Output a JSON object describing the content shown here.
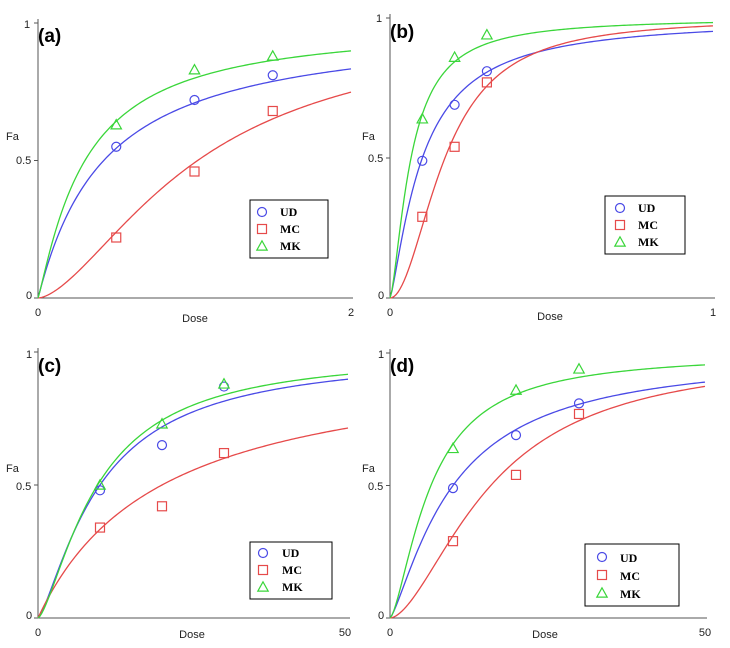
{
  "colors": {
    "UD": "#4a4ae6",
    "MC": "#e64a4a",
    "MK": "#3ad63a",
    "axis": "#555555"
  },
  "chart_data": [
    {
      "type": "scatter+line",
      "panel_label": "(a)",
      "xlabel": "Dose",
      "ylabel": "Fa",
      "xlim": [
        0,
        2
      ],
      "ylim": [
        0,
        1
      ],
      "x_tick_labels": [
        "0",
        "2"
      ],
      "y_tick_labels": [
        "0",
        "0.5",
        "1"
      ],
      "legend_position": "bottom-right",
      "series": [
        {
          "name": "UD",
          "marker": "circle",
          "points": [
            [
              0.5,
              0.55
            ],
            [
              1.0,
              0.72
            ],
            [
              1.5,
              0.81
            ]
          ],
          "fit": {
            "dm": 0.42,
            "m": 1.03
          }
        },
        {
          "name": "MC",
          "marker": "square",
          "points": [
            [
              0.5,
              0.22
            ],
            [
              1.0,
              0.46
            ],
            [
              1.5,
              0.68
            ]
          ],
          "fit": {
            "dm": 1.02,
            "m": 1.62
          }
        },
        {
          "name": "MK",
          "marker": "triangle",
          "points": [
            [
              0.5,
              0.63
            ],
            [
              1.0,
              0.83
            ],
            [
              1.5,
              0.88
            ]
          ],
          "fit": {
            "dm": 0.3,
            "m": 1.15
          }
        }
      ]
    },
    {
      "type": "scatter+line",
      "panel_label": "(b)",
      "xlabel": "Dose",
      "ylabel": "Fa",
      "xlim": [
        0,
        1
      ],
      "ylim": [
        0,
        1
      ],
      "x_tick_labels": [
        "0",
        "1"
      ],
      "y_tick_labels": [
        "0",
        "0.5",
        "1"
      ],
      "legend_position": "bottom-right",
      "series": [
        {
          "name": "UD",
          "marker": "circle",
          "points": [
            [
              0.1,
              0.49
            ],
            [
              0.2,
              0.69
            ],
            [
              0.3,
              0.81
            ]
          ],
          "fit": {
            "dm": 0.1,
            "m": 1.3
          }
        },
        {
          "name": "MC",
          "marker": "square",
          "points": [
            [
              0.1,
              0.29
            ],
            [
              0.2,
              0.54
            ],
            [
              0.3,
              0.77
            ]
          ],
          "fit": {
            "dm": 0.17,
            "m": 2.0
          }
        },
        {
          "name": "MK",
          "marker": "triangle",
          "points": [
            [
              0.1,
              0.64
            ],
            [
              0.2,
              0.86
            ],
            [
              0.3,
              0.94
            ]
          ],
          "fit": {
            "dm": 0.065,
            "m": 1.5
          }
        }
      ]
    },
    {
      "type": "scatter+line",
      "panel_label": "(c)",
      "xlabel": "Dose",
      "ylabel": "Fa",
      "xlim": [
        0,
        50
      ],
      "ylim": [
        0,
        1
      ],
      "x_tick_labels": [
        "0",
        "50"
      ],
      "y_tick_labels": [
        "0",
        "0.5",
        "1"
      ],
      "legend_position": "bottom-right",
      "series": [
        {
          "name": "UD",
          "marker": "circle",
          "points": [
            [
              10,
              0.48
            ],
            [
              20,
              0.65
            ],
            [
              30,
              0.87
            ]
          ],
          "fit": {
            "dm": 10.0,
            "m": 1.35
          }
        },
        {
          "name": "MC",
          "marker": "square",
          "points": [
            [
              10,
              0.34
            ],
            [
              20,
              0.42
            ],
            [
              30,
              0.62
            ]
          ],
          "fit": {
            "dm": 20.0,
            "m": 1.0
          }
        },
        {
          "name": "MK",
          "marker": "triangle",
          "points": [
            [
              10,
              0.5
            ],
            [
              20,
              0.73
            ],
            [
              30,
              0.88
            ]
          ],
          "fit": {
            "dm": 9.6,
            "m": 1.45
          }
        }
      ]
    },
    {
      "type": "scatter+line",
      "panel_label": "(d)",
      "xlabel": "Dose",
      "ylabel": "Fa",
      "xlim": [
        0,
        50
      ],
      "ylim": [
        0,
        1
      ],
      "x_tick_labels": [
        "0",
        "50"
      ],
      "y_tick_labels": [
        "0",
        "0.5",
        "1"
      ],
      "legend_position": "bottom-right",
      "series": [
        {
          "name": "UD",
          "marker": "circle",
          "points": [
            [
              10,
              0.49
            ],
            [
              20,
              0.69
            ],
            [
              30,
              0.81
            ]
          ],
          "fit": {
            "dm": 10.0,
            "m": 1.3
          }
        },
        {
          "name": "MC",
          "marker": "square",
          "points": [
            [
              10,
              0.29
            ],
            [
              20,
              0.54
            ],
            [
              30,
              0.77
            ]
          ],
          "fit": {
            "dm": 16.0,
            "m": 1.7
          }
        },
        {
          "name": "MK",
          "marker": "triangle",
          "points": [
            [
              10,
              0.64
            ],
            [
              20,
              0.86
            ],
            [
              30,
              0.94
            ]
          ],
          "fit": {
            "dm": 6.5,
            "m": 1.5
          }
        }
      ]
    }
  ]
}
